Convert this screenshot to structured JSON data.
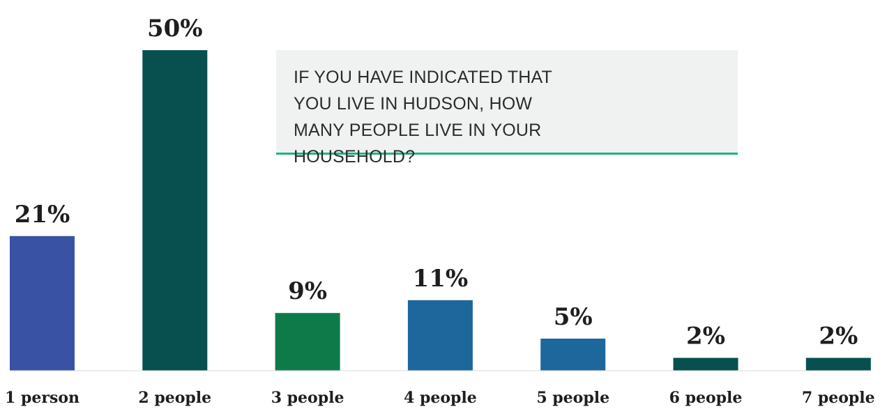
{
  "chart_data": {
    "type": "bar",
    "title": "",
    "xlabel": "",
    "ylabel": "",
    "categories": [
      "1 person",
      "2 people",
      "3 people",
      "4 people",
      "5 people",
      "6 people",
      "7 people"
    ],
    "values": [
      21,
      50,
      9,
      11,
      5,
      2,
      2
    ],
    "value_labels": [
      "21%",
      "50%",
      "9%",
      "11%",
      "5%",
      "2%",
      "2%"
    ],
    "unit": "%",
    "ylim": [
      0,
      50
    ],
    "grid": false,
    "legend": "none",
    "bar_colors": [
      "#3a52a4",
      "#07504f",
      "#0e7a4a",
      "#1e679d",
      "#1e679d",
      "#07504f",
      "#07504f"
    ]
  },
  "callout": {
    "text": "IF YOU HAVE INDICATED THAT YOU LIVE IN HUDSON, HOW MANY PEOPLE LIVE IN YOUR HOUSEHOLD?",
    "background": "#f0f2f1",
    "accent": "#1db38a"
  }
}
